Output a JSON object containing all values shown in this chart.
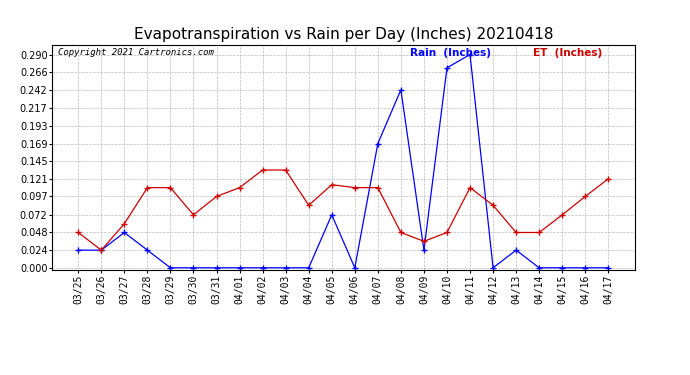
{
  "title": "Evapotranspiration vs Rain per Day (Inches) 20210418",
  "copyright": "Copyright 2021 Cartronics.com",
  "labels": [
    "03/25",
    "03/26",
    "03/27",
    "03/28",
    "03/29",
    "03/30",
    "03/31",
    "04/01",
    "04/02",
    "04/03",
    "04/04",
    "04/05",
    "04/06",
    "04/07",
    "04/08",
    "04/09",
    "04/10",
    "04/11",
    "04/12",
    "04/13",
    "04/14",
    "04/15",
    "04/16",
    "04/17"
  ],
  "rain_inches": [
    0.024,
    0.024,
    0.048,
    0.024,
    0.0,
    0.0,
    0.0,
    0.0,
    0.0,
    0.0,
    0.0,
    0.072,
    0.0,
    0.169,
    0.242,
    0.024,
    0.272,
    0.29,
    0.0,
    0.024,
    0.0,
    0.0,
    0.0,
    0.0
  ],
  "et_inches": [
    0.048,
    0.024,
    0.06,
    0.109,
    0.109,
    0.072,
    0.097,
    0.109,
    0.133,
    0.133,
    0.085,
    0.113,
    0.109,
    0.109,
    0.048,
    0.036,
    0.048,
    0.109,
    0.085,
    0.048,
    0.048,
    0.072,
    0.097,
    0.121
  ],
  "rain_color": "#0000ff",
  "et_color": "#cc0000",
  "yticks": [
    0.0,
    0.024,
    0.048,
    0.072,
    0.097,
    0.121,
    0.145,
    0.169,
    0.193,
    0.217,
    0.242,
    0.266,
    0.29
  ],
  "background_color": "#ffffff",
  "grid_color": "#aaaaaa",
  "title_fontsize": 11,
  "tick_fontsize": 7,
  "legend_rain": "Rain  (Inches)",
  "legend_et": "ET  (Inches)"
}
